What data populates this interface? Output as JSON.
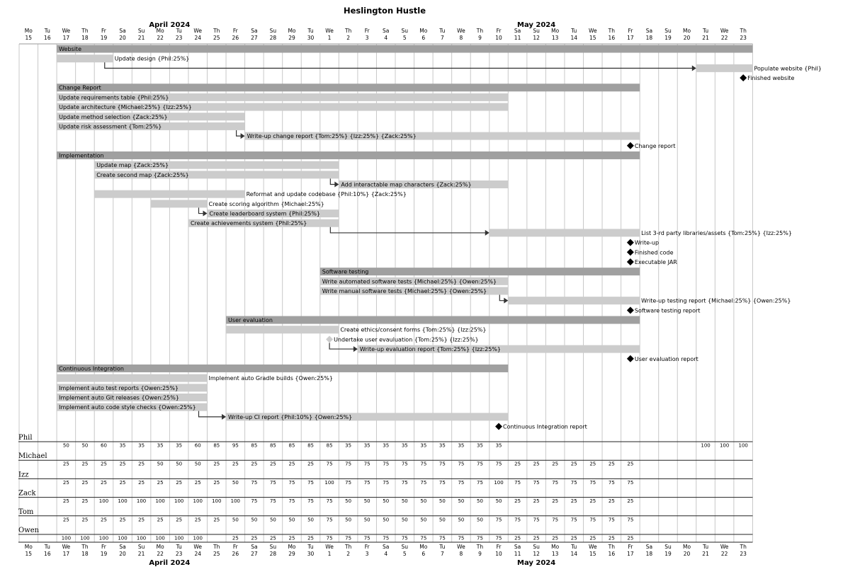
{
  "chart_data": {
    "type": "gantt",
    "title": "Heslington Hustle",
    "start_date": "2024-04-15",
    "months": [
      {
        "label": "April 2024",
        "from": "2024-04-15",
        "to": "2024-04-30"
      },
      {
        "label": "May 2024",
        "from": "2024-05-01",
        "to": "2024-05-23"
      }
    ],
    "days": [
      {
        "dow": "Mo",
        "day": "15"
      },
      {
        "dow": "Tu",
        "day": "16"
      },
      {
        "dow": "We",
        "day": "17"
      },
      {
        "dow": "Th",
        "day": "18"
      },
      {
        "dow": "Fr",
        "day": "19"
      },
      {
        "dow": "Sa",
        "day": "20"
      },
      {
        "dow": "Su",
        "day": "21"
      },
      {
        "dow": "Mo",
        "day": "22"
      },
      {
        "dow": "Tu",
        "day": "23"
      },
      {
        "dow": "We",
        "day": "24"
      },
      {
        "dow": "Th",
        "day": "25"
      },
      {
        "dow": "Fr",
        "day": "26"
      },
      {
        "dow": "Sa",
        "day": "27"
      },
      {
        "dow": "Su",
        "day": "28"
      },
      {
        "dow": "Mo",
        "day": "29"
      },
      {
        "dow": "Tu",
        "day": "30"
      },
      {
        "dow": "We",
        "day": "1"
      },
      {
        "dow": "Th",
        "day": "2"
      },
      {
        "dow": "Fr",
        "day": "3"
      },
      {
        "dow": "Sa",
        "day": "4"
      },
      {
        "dow": "Su",
        "day": "5"
      },
      {
        "dow": "Mo",
        "day": "6"
      },
      {
        "dow": "Tu",
        "day": "7"
      },
      {
        "dow": "We",
        "day": "8"
      },
      {
        "dow": "Th",
        "day": "9"
      },
      {
        "dow": "Fr",
        "day": "10"
      },
      {
        "dow": "Sa",
        "day": "11"
      },
      {
        "dow": "Su",
        "day": "12"
      },
      {
        "dow": "Mo",
        "day": "13"
      },
      {
        "dow": "Tu",
        "day": "14"
      },
      {
        "dow": "We",
        "day": "15"
      },
      {
        "dow": "Th",
        "day": "16"
      },
      {
        "dow": "Fr",
        "day": "17"
      },
      {
        "dow": "Sa",
        "day": "18"
      },
      {
        "dow": "Su",
        "day": "19"
      },
      {
        "dow": "Mo",
        "day": "20"
      },
      {
        "dow": "Tu",
        "day": "21"
      },
      {
        "dow": "We",
        "day": "22"
      },
      {
        "dow": "Th",
        "day": "23"
      }
    ],
    "rows": [
      {
        "kind": "group",
        "label": "Website",
        "start": "2024-04-17",
        "end": "2024-05-23"
      },
      {
        "kind": "task",
        "label": "Update design {Phil:25%}",
        "start": "2024-04-17",
        "end": "2024-04-19"
      },
      {
        "kind": "task",
        "label": "Populate website {Phil}",
        "start": "2024-05-21",
        "end": "2024-05-23",
        "after": 1
      },
      {
        "kind": "milestone",
        "label": "Finished website",
        "date": "2024-05-23"
      },
      {
        "kind": "group",
        "label": "Change Report",
        "start": "2024-04-17",
        "end": "2024-05-17"
      },
      {
        "kind": "task",
        "label": "Update requirements table {Phil:25%}",
        "start": "2024-04-17",
        "end": "2024-05-10"
      },
      {
        "kind": "task",
        "label": "Update architecture {Michael:25%} {Izz:25%}",
        "start": "2024-04-17",
        "end": "2024-05-10"
      },
      {
        "kind": "task",
        "label": "Update method selection {Zack:25%}",
        "start": "2024-04-17",
        "end": "2024-04-26"
      },
      {
        "kind": "task",
        "label": "Update risk assessment {Tom:25%}",
        "start": "2024-04-17",
        "end": "2024-04-26"
      },
      {
        "kind": "task",
        "label": "Write-up change report {Tom:25%} {Izz:25%} {Zack:25%}",
        "start": "2024-04-27",
        "end": "2024-05-17",
        "after": 8
      },
      {
        "kind": "milestone",
        "label": "Change report",
        "date": "2024-05-17"
      },
      {
        "kind": "group",
        "label": "Implementation",
        "start": "2024-04-17",
        "end": "2024-05-17"
      },
      {
        "kind": "task",
        "label": "Update map {Zack:25%}",
        "start": "2024-04-19",
        "end": "2024-05-01"
      },
      {
        "kind": "task",
        "label": "Create second map {Zack:25%}",
        "start": "2024-04-19",
        "end": "2024-05-01"
      },
      {
        "kind": "task",
        "label": "Add interactable map characters {Zack:25%}",
        "start": "2024-05-02",
        "end": "2024-05-10",
        "after": 13
      },
      {
        "kind": "task",
        "label": "Reformat and update codebase {Phil:10%} {Zack:25%}",
        "start": "2024-04-19",
        "end": "2024-04-26"
      },
      {
        "kind": "task",
        "label": "Create scoring algorithm {Michael:25%}",
        "start": "2024-04-22",
        "end": "2024-04-24"
      },
      {
        "kind": "task",
        "label": "Create leaderboard system {Phil:25%}",
        "start": "2024-04-25",
        "end": "2024-05-01",
        "after": 16
      },
      {
        "kind": "task",
        "label": "Create achievements system {Phil:25%}",
        "start": "2024-04-24",
        "end": "2024-05-01"
      },
      {
        "kind": "task",
        "label": "List 3-rd party libraries/assets {Tom:25%} {Izz:25%}",
        "start": "2024-05-10",
        "end": "2024-05-17",
        "after": 18
      },
      {
        "kind": "milestone",
        "label": "Write-up",
        "date": "2024-05-17"
      },
      {
        "kind": "milestone",
        "label": "Finished code",
        "date": "2024-05-17"
      },
      {
        "kind": "milestone",
        "label": "Executable JAR",
        "date": "2024-05-17"
      },
      {
        "kind": "group",
        "label": "Software testing",
        "start": "2024-05-01",
        "end": "2024-05-17"
      },
      {
        "kind": "task",
        "label": "Write automated software tests {Michael:25%} {Owen:25%}",
        "start": "2024-05-01",
        "end": "2024-05-10"
      },
      {
        "kind": "task",
        "label": "Write manual software tests {Michael:25%} {Owen:25%}",
        "start": "2024-05-01",
        "end": "2024-05-10"
      },
      {
        "kind": "task",
        "label": "Write-up testing report {Michael:25%} {Owen:25%}",
        "start": "2024-05-11",
        "end": "2024-05-17",
        "after": 25
      },
      {
        "kind": "milestone",
        "label": "Software testing report",
        "date": "2024-05-17"
      },
      {
        "kind": "group",
        "label": "User evaluation",
        "start": "2024-04-26",
        "end": "2024-05-17"
      },
      {
        "kind": "task",
        "label": "Create ethics/consent forms {Tom:25%} {Izz:25%}",
        "start": "2024-04-26",
        "end": "2024-05-01"
      },
      {
        "kind": "milestone",
        "label": "Undertake user evauluation {Tom:25%} {Izz:25%}",
        "date": "2024-05-01",
        "light": true
      },
      {
        "kind": "task",
        "label": "Write-up evaluation report {Tom:25%} {Izz:25%}",
        "start": "2024-05-03",
        "end": "2024-05-17",
        "after": 30
      },
      {
        "kind": "milestone",
        "label": "User evaluation report",
        "date": "2024-05-17"
      },
      {
        "kind": "group",
        "label": "Continuous Integration",
        "start": "2024-04-17",
        "end": "2024-05-10"
      },
      {
        "kind": "task",
        "label": "Implement auto Gradle builds {Owen:25%}",
        "start": "2024-04-17",
        "end": "2024-04-24"
      },
      {
        "kind": "task",
        "label": "Implement auto test reports {Owen:25%}",
        "start": "2024-04-17",
        "end": "2024-04-24"
      },
      {
        "kind": "task",
        "label": "Implement auto Git releases {Owen:25%}",
        "start": "2024-04-17",
        "end": "2024-04-24"
      },
      {
        "kind": "task",
        "label": "Implement auto code style checks {Owen:25%}",
        "start": "2024-04-17",
        "end": "2024-04-24"
      },
      {
        "kind": "task",
        "label": "Write-up CI report {Phil:10%} {Owen:25%}",
        "start": "2024-04-26",
        "end": "2024-05-10",
        "after": 37
      },
      {
        "kind": "milestone",
        "label": "Continuous Integration report",
        "date": "2024-05-10"
      }
    ],
    "resources": [
      {
        "name": "Phil",
        "values": [
          null,
          null,
          50,
          50,
          60,
          35,
          35,
          35,
          35,
          60,
          85,
          95,
          85,
          85,
          85,
          85,
          85,
          35,
          35,
          35,
          35,
          35,
          35,
          35,
          35,
          35,
          null,
          null,
          null,
          null,
          null,
          null,
          null,
          null,
          null,
          null,
          100,
          100,
          100
        ]
      },
      {
        "name": "Michael",
        "values": [
          null,
          null,
          25,
          25,
          25,
          25,
          25,
          50,
          50,
          50,
          25,
          25,
          25,
          25,
          25,
          25,
          75,
          75,
          75,
          75,
          75,
          75,
          75,
          75,
          75,
          75,
          25,
          25,
          25,
          25,
          25,
          25,
          25,
          null,
          null,
          null,
          null,
          null,
          null
        ]
      },
      {
        "name": "Izz",
        "values": [
          null,
          null,
          25,
          25,
          25,
          25,
          25,
          25,
          25,
          25,
          25,
          50,
          75,
          75,
          75,
          75,
          100,
          75,
          75,
          75,
          75,
          75,
          75,
          75,
          75,
          100,
          75,
          75,
          75,
          75,
          75,
          75,
          75,
          null,
          null,
          null,
          null,
          null,
          null
        ]
      },
      {
        "name": "Zack",
        "values": [
          null,
          null,
          25,
          25,
          100,
          100,
          100,
          100,
          100,
          100,
          100,
          100,
          75,
          75,
          75,
          75,
          75,
          50,
          50,
          50,
          50,
          50,
          50,
          50,
          50,
          50,
          25,
          25,
          25,
          25,
          25,
          25,
          25,
          null,
          null,
          null,
          null,
          null,
          null
        ]
      },
      {
        "name": "Tom",
        "values": [
          null,
          null,
          25,
          25,
          25,
          25,
          25,
          25,
          25,
          25,
          25,
          50,
          50,
          50,
          50,
          50,
          75,
          50,
          50,
          50,
          50,
          50,
          50,
          50,
          50,
          75,
          75,
          75,
          75,
          75,
          75,
          75,
          75,
          null,
          null,
          null,
          null,
          null,
          null
        ]
      },
      {
        "name": "Owen",
        "values": [
          null,
          null,
          100,
          100,
          100,
          100,
          100,
          100,
          100,
          100,
          null,
          25,
          25,
          25,
          25,
          25,
          75,
          75,
          75,
          75,
          75,
          75,
          75,
          75,
          75,
          75,
          25,
          25,
          25,
          25,
          25,
          25,
          25,
          null,
          null,
          null,
          null,
          null,
          null
        ]
      }
    ],
    "colors": {
      "group": "#a0a0a0",
      "task": "#cccccc",
      "milestone": "#000000",
      "milestone_light": "#cccccc",
      "grid": "#c8c8c8",
      "arrow": "#333333"
    }
  }
}
